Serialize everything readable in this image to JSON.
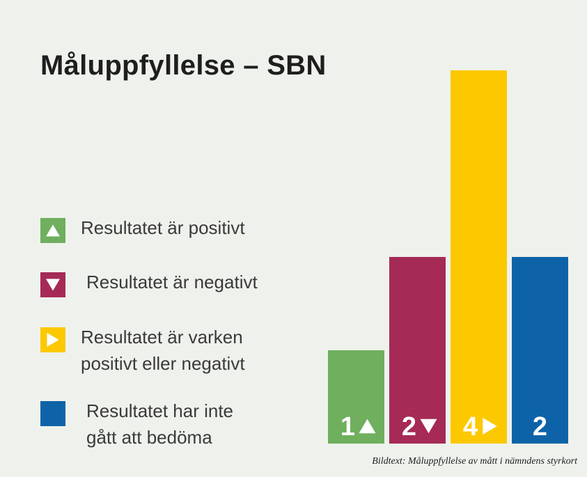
{
  "title": "Måluppfyllelse – SBN",
  "legend": [
    {
      "lines": [
        "Resultatet är positivt"
      ],
      "color": "#6faf5e",
      "icon": "triangle-up-icon"
    },
    {
      "lines": [
        "Resultatet är negativt"
      ],
      "color": "#a52a56",
      "icon": "triangle-down-icon"
    },
    {
      "lines": [
        "Resultatet är varken",
        "positivt eller negativt"
      ],
      "color": "#fcc800",
      "icon": "triangle-right-icon"
    },
    {
      "lines": [
        "Resultatet har inte",
        "gått att bedöma"
      ],
      "color": "#0e63a8",
      "icon": ""
    }
  ],
  "chart_data": {
    "type": "bar",
    "title": "Måluppfyllelse – SBN",
    "categories": [
      "Resultatet är positivt",
      "Resultatet är negativt",
      "Resultatet är varken positivt eller negativt",
      "Resultatet har inte gått att bedöma"
    ],
    "values": [
      1,
      2,
      4,
      2
    ],
    "bar_labels": [
      "1",
      "2",
      "4",
      "2"
    ],
    "bar_icons": [
      "triangle-up-icon",
      "triangle-down-icon",
      "triangle-right-icon",
      ""
    ],
    "colors": [
      "#6faf5e",
      "#a52a56",
      "#fcc800",
      "#0e63a8"
    ],
    "ylim": [
      0,
      4
    ],
    "grid": false,
    "axes_visible": false,
    "legend_placement": "left"
  },
  "caption": "Bildtext: Måluppfyllelse av mått i nämndens styrkort"
}
